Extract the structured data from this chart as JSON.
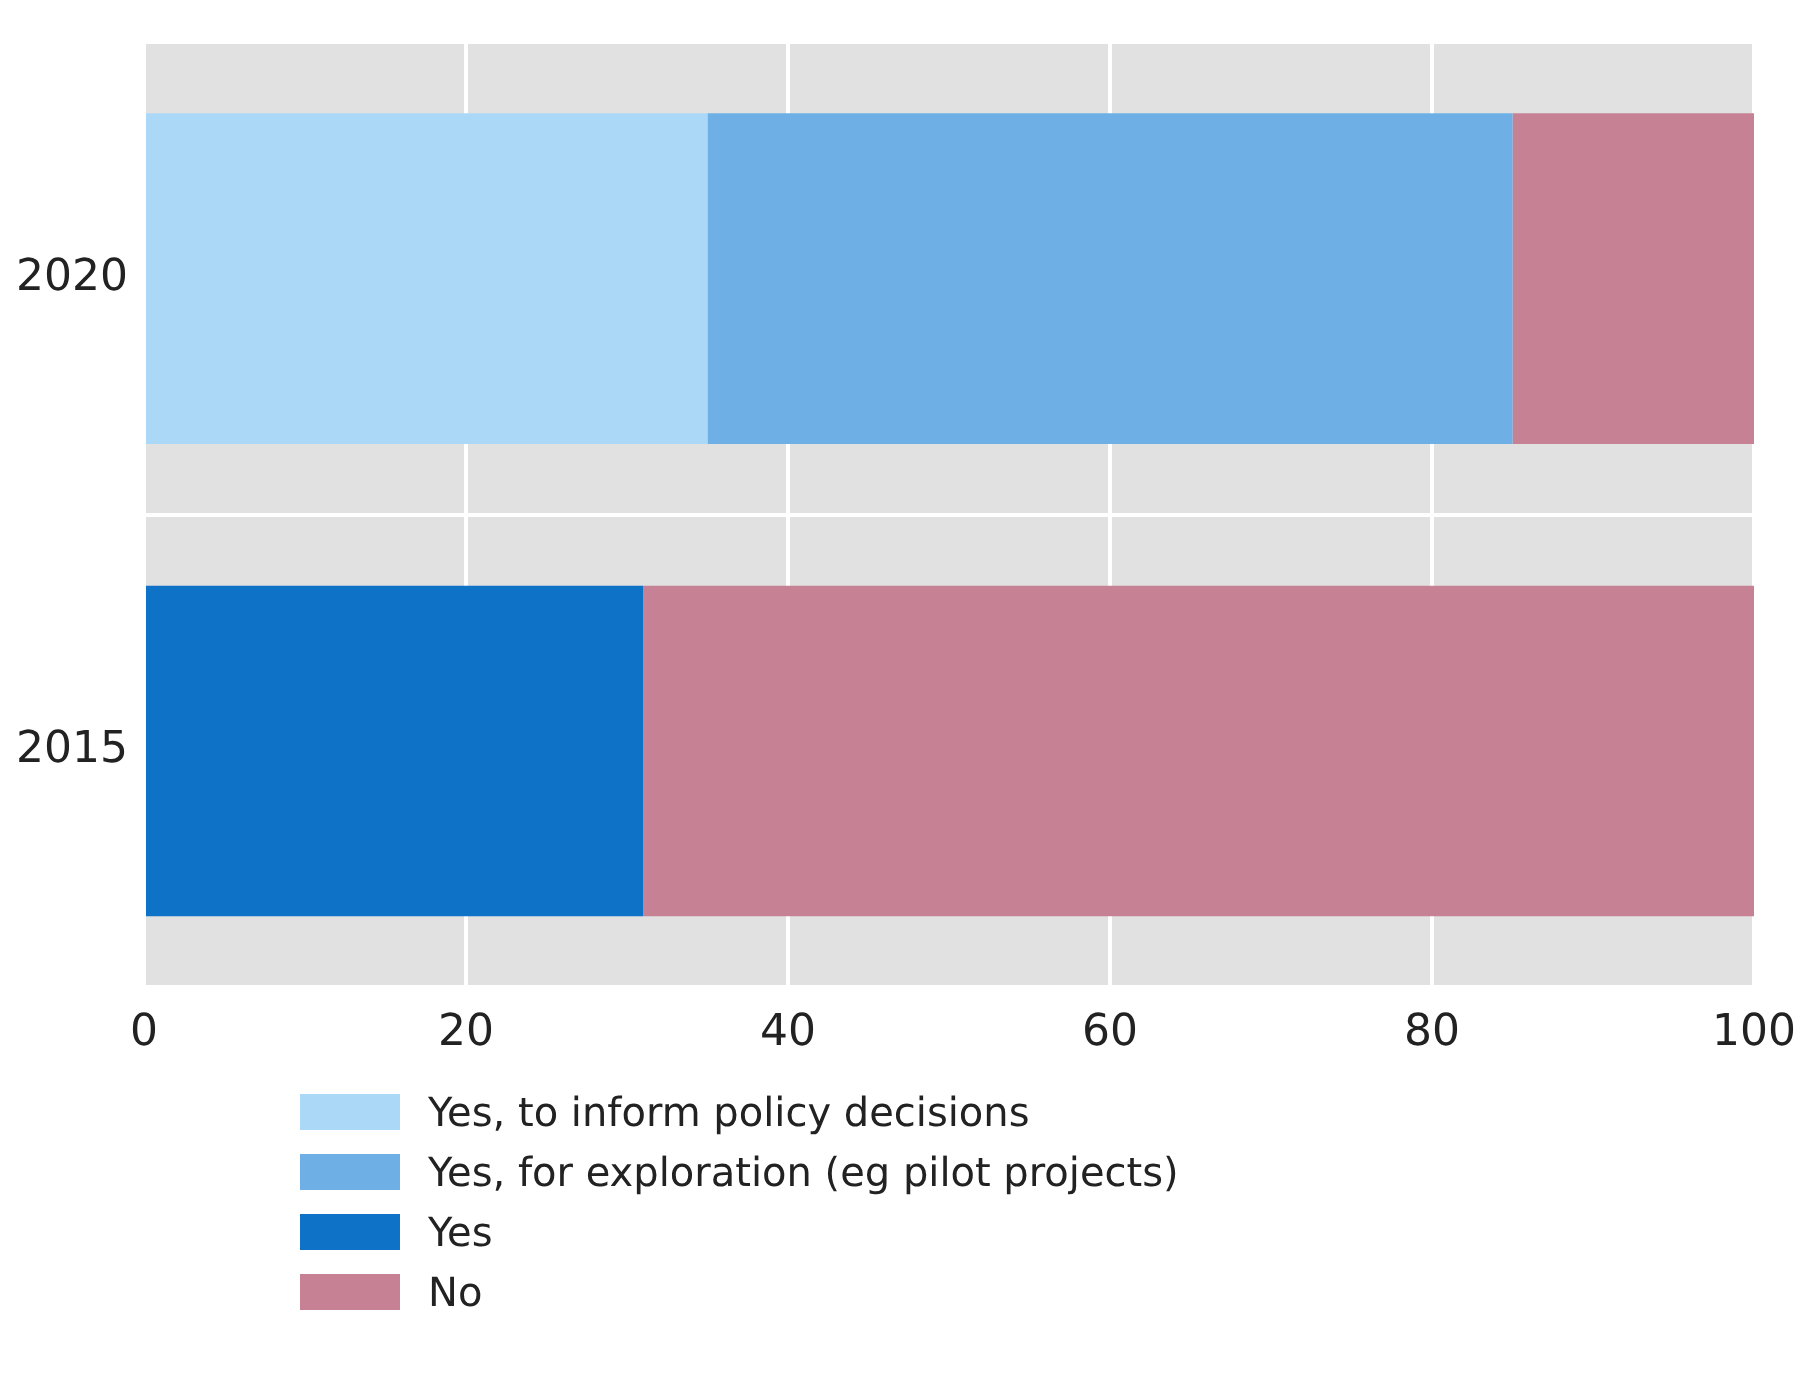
{
  "chart_data": {
    "type": "bar",
    "orientation": "horizontal",
    "stacked": true,
    "categories": [
      "2020",
      "2015"
    ],
    "series": [
      {
        "name": "Yes, to inform policy decisions",
        "color": "#acd8f8",
        "values": [
          35,
          null
        ]
      },
      {
        "name": "Yes, for exploration (eg pilot projects)",
        "color": "#6eb0e6",
        "values": [
          50,
          null
        ]
      },
      {
        "name": "Yes",
        "color": "#0e72c6",
        "values": [
          null,
          31
        ]
      },
      {
        "name": "No",
        "color": "#c68294",
        "values": [
          15,
          69
        ]
      }
    ],
    "xlim": [
      0,
      100
    ],
    "xticks": [
      0,
      20,
      40,
      60,
      80,
      100
    ],
    "grid": true,
    "legend": "bottom left"
  }
}
